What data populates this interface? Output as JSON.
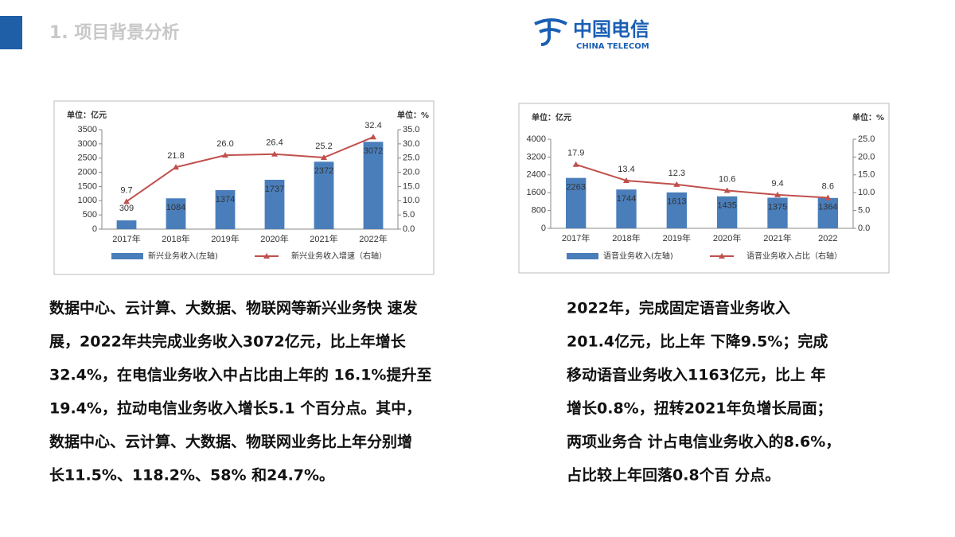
{
  "header": {
    "title": "1. 项目背景分析",
    "logo_cn": "中国电信",
    "logo_en": "CHINA TELECOM"
  },
  "chart_data": [
    {
      "type": "bar_line",
      "y_unit": "单位：亿元",
      "y2_unit": "单位：%",
      "categories": [
        "2017年",
        "2018年",
        "2019年",
        "2020年",
        "2021年",
        "2022年"
      ],
      "series": [
        {
          "name": "新兴业务收入(左轴)",
          "type": "bar",
          "color": "#4a7ebb",
          "values": [
            309,
            1084,
            1374,
            1737,
            2372,
            3072
          ]
        },
        {
          "name": "新兴业务收入增速（右轴）",
          "type": "line",
          "axis": "y2",
          "color": "#c0504d",
          "values": [
            9.7,
            21.8,
            26.0,
            26.4,
            25.2,
            32.4
          ],
          "value_labels": [
            "9.7",
            "21.8",
            "26.0",
            "26.4",
            "25.2",
            "32.4"
          ]
        }
      ],
      "ylim": [
        0,
        3500
      ],
      "yticks": [
        0,
        500,
        1000,
        1500,
        2000,
        2500,
        3000,
        3500
      ],
      "y2lim": [
        0,
        35
      ],
      "y2ticks": [
        {
          "value": 0,
          "label": "0.0"
        },
        {
          "value": 5,
          "label": "5.0"
        },
        {
          "value": 10,
          "label": "10.0"
        },
        {
          "value": 15,
          "label": "15.0"
        },
        {
          "value": 20,
          "label": "20.0"
        },
        {
          "value": 25,
          "label": "25.0"
        },
        {
          "value": 30,
          "label": "30.0"
        },
        {
          "value": 35,
          "label": "35.0"
        }
      ]
    },
    {
      "type": "bar_line",
      "y_unit": "单位：亿元",
      "y2_unit": "单位：%",
      "categories": [
        "2017年",
        "2018年",
        "2019年",
        "2020年",
        "2021年",
        "2022"
      ],
      "series": [
        {
          "name": "语音业务收入(左轴)",
          "type": "bar",
          "color": "#4a7ebb",
          "values": [
            2263,
            1744,
            1613,
            1435,
            1375,
            1364
          ]
        },
        {
          "name": "语音业务收入占比（右轴）",
          "type": "line",
          "axis": "y2",
          "color": "#c0504d",
          "values": [
            17.9,
            13.4,
            12.3,
            10.6,
            9.4,
            8.6
          ]
        }
      ],
      "ylim": [
        0,
        4000
      ],
      "yticks": [
        0,
        800,
        1600,
        2400,
        3200,
        4000
      ],
      "y2lim": [
        0,
        25
      ],
      "y2ticks": [
        {
          "value": 0,
          "label": "0.0"
        },
        {
          "value": 5,
          "label": "5.0"
        },
        {
          "value": 10,
          "label": "10.0"
        },
        {
          "value": 15,
          "label": "15.0"
        },
        {
          "value": 20,
          "label": "20.0"
        },
        {
          "value": 25,
          "label": "25.0"
        }
      ]
    }
  ],
  "paragraphs": [
    [
      "数据中心、云计算、大数据、物联网等新兴业务快 速发",
      "展，2022年共完成业务收入3072亿元，比上年增长",
      "32.4%，在电信业务收入中占比由上年的 16.1%提升至",
      "19.4%，拉动电信业务收入增长5.1 个百分点。其中，",
      "数据中心、云计算、大数据、物联网业务比上年分别增",
      "长11.5%、118.2%、58% 和24.7%。"
    ],
    [
      "2022年，完成固定语音业务收入",
      "201.4亿元，比上年 下降9.5%；完成",
      "移动语音业务收入1163亿元，比上 年",
      "增长0.8%，扭转2021年负增长局面；",
      "两项业务合 计占电信业务收入的8.6%，",
      "占比较上年回落0.8个百 分点。"
    ]
  ]
}
